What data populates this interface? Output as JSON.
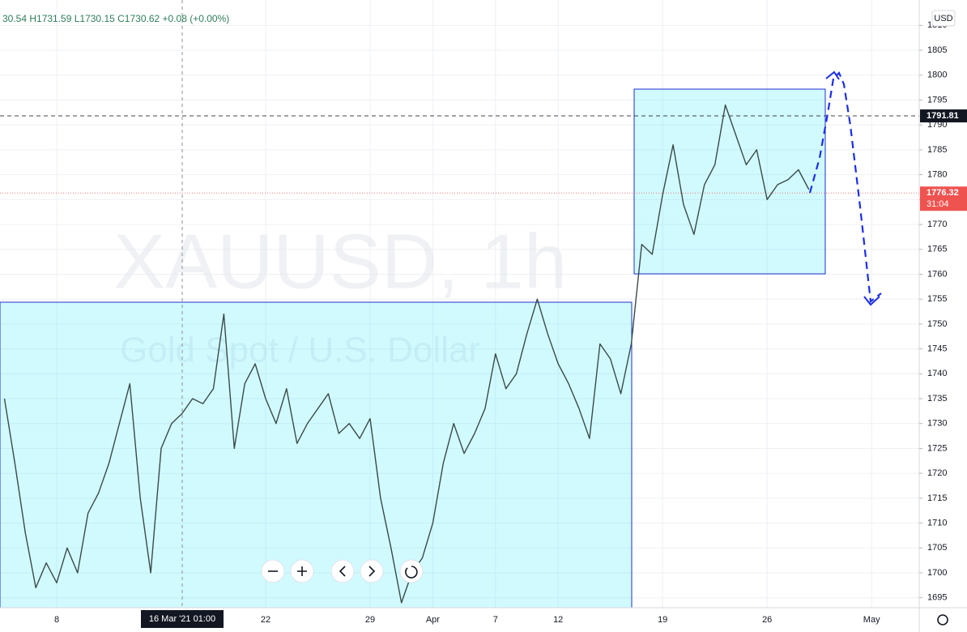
{
  "chart_data": {
    "type": "line",
    "symbol_info": "30.54 H1731.59 L1730.15 C1730.62 +0.08 (+0.00%)",
    "watermark": "XAUUSD, 1h",
    "watermark_sub": "Gold Spot / U.S. Dollar",
    "currency": "USD",
    "crosshair_label": "16 Mar '21 01:00",
    "countdown": "31:04",
    "categories": [
      null,
      null,
      null,
      null,
      null,
      "8",
      null,
      null,
      null,
      null,
      null,
      null,
      null,
      null,
      null,
      null,
      null,
      null,
      null,
      null,
      null,
      null,
      null,
      null,
      null,
      "22",
      null,
      null,
      null,
      null,
      null,
      null,
      null,
      null,
      null,
      "29",
      null,
      null,
      null,
      null,
      null,
      "Apr",
      null,
      null,
      null,
      null,
      null,
      "7",
      null,
      null,
      null,
      null,
      null,
      "12",
      null,
      null,
      null,
      null,
      null,
      null,
      null,
      null,
      null,
      "19",
      null,
      null,
      null,
      null,
      null,
      null,
      null,
      null,
      null,
      "26",
      null,
      null,
      null,
      null,
      null,
      null,
      null,
      null,
      null,
      "May"
    ],
    "series": [
      {
        "name": "XAUUSD",
        "color": "#3b4a48",
        "values": [
          1735,
          1722,
          1708,
          1697,
          1702,
          1698,
          1705,
          1700,
          1712,
          1716,
          1722,
          1730,
          1738,
          1715,
          1700,
          1725,
          1730,
          1732,
          1735,
          1734,
          1737,
          1752,
          1725,
          1738,
          1742,
          1735,
          1730,
          1737,
          1726,
          1730,
          1733,
          1736,
          1728,
          1730,
          1727,
          1731,
          1715,
          1705,
          1694,
          1700,
          1703,
          1710,
          1722,
          1730,
          1724,
          1728,
          1733,
          1744,
          1737,
          1740,
          1748,
          1755,
          1748,
          1742,
          1738,
          1733,
          1727,
          1746,
          1743,
          1736,
          1746,
          1766,
          1764,
          1776,
          1786,
          1774,
          1768,
          1778,
          1782,
          1794,
          1788,
          1782,
          1785,
          1775,
          1778,
          1779,
          1781,
          1777,
          null,
          null,
          null,
          null,
          null,
          null
        ]
      }
    ],
    "price_lines": [
      {
        "value": 1791.81,
        "color": "#131722"
      },
      {
        "value": 1776.32,
        "color": "#ef5350"
      }
    ],
    "ylim": [
      1693,
      1815.1
    ],
    "yticks": [
      1695,
      1700,
      1705,
      1710,
      1715,
      1720,
      1725,
      1730,
      1735,
      1740,
      1745,
      1750,
      1755,
      1760,
      1765,
      1770,
      1775,
      1780,
      1785,
      1790,
      1795,
      1800,
      1805,
      1810
    ],
    "grid": true
  }
}
